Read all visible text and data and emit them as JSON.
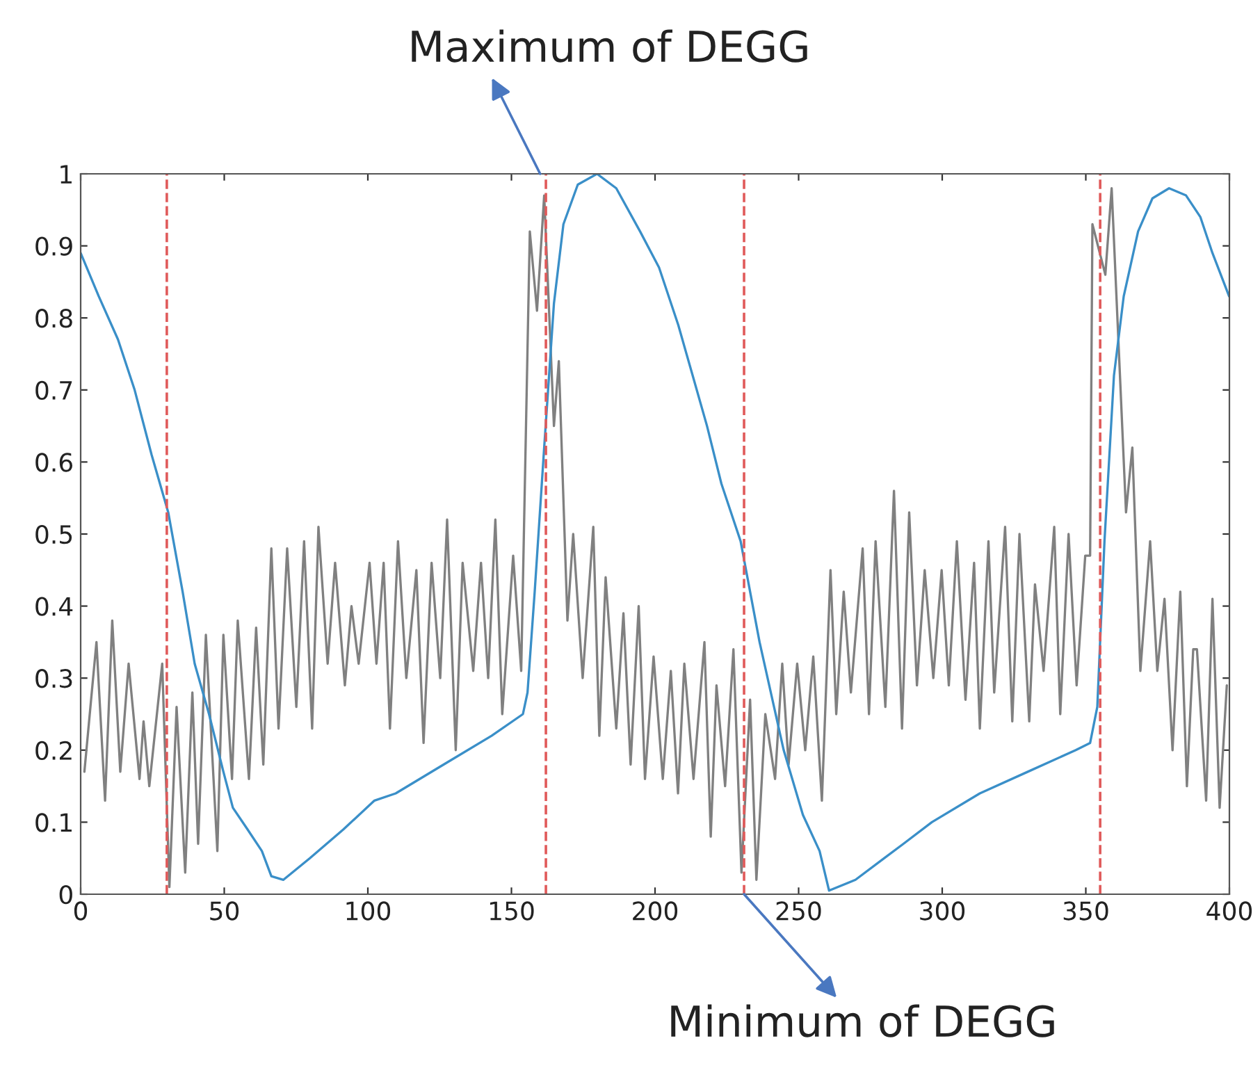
{
  "chart_data": {
    "type": "line",
    "xlim": [
      0,
      400
    ],
    "ylim": [
      0,
      1
    ],
    "xticks": [
      0,
      50,
      100,
      150,
      200,
      250,
      300,
      350,
      400
    ],
    "yticks": [
      0,
      0.1,
      0.2,
      0.3,
      0.4,
      0.5,
      0.6,
      0.7,
      0.8,
      0.9,
      1
    ],
    "grid": false,
    "line_style": "solid",
    "marker": "none",
    "series": [
      {
        "color": "#808080",
        "x": [
          1.3,
          5.5,
          8.5,
          11,
          13.8,
          16.7,
          20.5,
          21.9,
          23.9,
          28.4,
          30.9,
          33.4,
          36.4,
          38.9,
          40.9,
          43.6,
          47.6,
          49.7,
          52.7,
          54.7,
          58.6,
          61.1,
          63.6,
          66.4,
          68.9,
          71.9,
          75.1,
          77.8,
          80.6,
          82.8,
          86,
          88.6,
          92,
          94.3,
          96.8,
          100.6,
          103,
          105.5,
          107.7,
          110.5,
          113.4,
          116.9,
          119.4,
          122.2,
          125.2,
          127.6,
          130.6,
          133,
          136.7,
          139.4,
          141.9,
          144.4,
          146.8,
          150.6,
          153.4,
          156.4,
          158.9,
          161.4,
          164.8,
          166.5,
          169.5,
          171.5,
          174.8,
          178.5,
          180.6,
          182.8,
          186.5,
          189,
          191.5,
          194.3,
          196.5,
          199.5,
          202.7,
          205.5,
          208,
          210.2,
          213.4,
          217.2,
          219.4,
          221.4,
          224.4,
          227.3,
          230.1,
          233.1,
          235.3,
          238.4,
          241.8,
          244.3,
          246.5,
          249.5,
          252.3,
          255.1,
          258.1,
          261.1,
          263.1,
          265.7,
          268.2,
          272.3,
          274.5,
          276.8,
          280.2,
          283.2,
          286,
          288.5,
          291.2,
          293.9,
          296.9,
          299.8,
          302.3,
          305.1,
          308.1,
          311.1,
          313.1,
          316.1,
          318.1,
          321.9,
          324.4,
          326.9,
          330.3,
          332.3,
          335.3,
          339,
          341.1,
          344,
          346.8,
          349.8,
          351.5,
          352.3,
          356.8,
          359,
          364,
          366.2,
          369,
          372.4,
          374.9,
          377.4,
          380.2,
          382.9,
          385.2,
          387.4,
          388.7,
          391.9,
          394.1,
          396.6,
          399.1
        ],
        "values": [
          0.17,
          0.35,
          0.13,
          0.38,
          0.17,
          0.32,
          0.16,
          0.24,
          0.15,
          0.32,
          0.01,
          0.26,
          0.03,
          0.28,
          0.07,
          0.36,
          0.06,
          0.36,
          0.16,
          0.38,
          0.16,
          0.37,
          0.18,
          0.48,
          0.23,
          0.48,
          0.26,
          0.49,
          0.23,
          0.51,
          0.32,
          0.46,
          0.29,
          0.4,
          0.32,
          0.46,
          0.32,
          0.46,
          0.23,
          0.49,
          0.3,
          0.45,
          0.21,
          0.46,
          0.3,
          0.52,
          0.2,
          0.46,
          0.31,
          0.46,
          0.3,
          0.52,
          0.25,
          0.47,
          0.31,
          0.92,
          0.81,
          0.97,
          0.65,
          0.74,
          0.38,
          0.5,
          0.3,
          0.51,
          0.22,
          0.44,
          0.23,
          0.39,
          0.18,
          0.4,
          0.16,
          0.33,
          0.16,
          0.31,
          0.14,
          0.32,
          0.16,
          0.35,
          0.08,
          0.29,
          0.15,
          0.34,
          0.03,
          0.27,
          0.02,
          0.25,
          0.16,
          0.32,
          0.18,
          0.32,
          0.2,
          0.33,
          0.13,
          0.45,
          0.25,
          0.42,
          0.28,
          0.48,
          0.25,
          0.49,
          0.26,
          0.56,
          0.23,
          0.53,
          0.29,
          0.45,
          0.3,
          0.45,
          0.29,
          0.49,
          0.27,
          0.46,
          0.23,
          0.49,
          0.28,
          0.51,
          0.24,
          0.5,
          0.24,
          0.43,
          0.31,
          0.51,
          0.25,
          0.5,
          0.29,
          0.47,
          0.47,
          0.93,
          0.86,
          0.98,
          0.53,
          0.62,
          0.31,
          0.49,
          0.31,
          0.41,
          0.2,
          0.42,
          0.15,
          0.34,
          0.34,
          0.13,
          0.41,
          0.12,
          0.29
        ]
      },
      {
        "color": "#3a8fc8",
        "x": [
          0,
          6.3,
          13,
          18.8,
          24.7,
          30.5,
          35.5,
          39.7,
          44.7,
          49.7,
          53,
          58.1,
          63.1,
          66.4,
          70.6,
          79.8,
          91.5,
          102.3,
          109.7,
          126.4,
          143.1,
          154,
          155.6,
          158.1,
          161.4,
          164.8,
          168.1,
          173.1,
          179.8,
          186.5,
          194.8,
          201.4,
          208.1,
          213.1,
          218.1,
          223.1,
          229.8,
          236.4,
          244.8,
          251.5,
          257.3,
          260.6,
          269.8,
          286.5,
          296.4,
          313.1,
          329.8,
          346.5,
          351.5,
          354,
          356.5,
          359.8,
          363.2,
          368.2,
          373.2,
          379,
          384.9,
          389.9,
          394.1,
          399.9
        ],
        "values": [
          0.89,
          0.83,
          0.77,
          0.7,
          0.61,
          0.53,
          0.42,
          0.32,
          0.25,
          0.17,
          0.12,
          0.09,
          0.06,
          0.025,
          0.02,
          0.05,
          0.09,
          0.13,
          0.14,
          0.18,
          0.22,
          0.25,
          0.28,
          0.42,
          0.62,
          0.82,
          0.93,
          0.985,
          1,
          0.98,
          0.92,
          0.87,
          0.79,
          0.72,
          0.65,
          0.57,
          0.49,
          0.35,
          0.2,
          0.11,
          0.06,
          0.005,
          0.02,
          0.07,
          0.1,
          0.14,
          0.17,
          0.2,
          0.21,
          0.26,
          0.49,
          0.72,
          0.83,
          0.92,
          0.966,
          0.98,
          0.97,
          0.94,
          0.89,
          0.83
        ]
      }
    ],
    "ref_lines": [
      {
        "axis": "x",
        "value": 30,
        "color": "#e05a5a",
        "line_style": "dashed"
      },
      {
        "axis": "x",
        "value": 162,
        "color": "#e05a5a",
        "line_style": "dashed"
      },
      {
        "axis": "x",
        "value": 231,
        "color": "#e05a5a",
        "line_style": "dashed"
      },
      {
        "axis": "x",
        "value": 355,
        "color": "#e05a5a",
        "line_style": "dashed"
      }
    ],
    "annotations": [
      {
        "text": "Maximum of DEGG",
        "x": 160,
        "y": 1
      },
      {
        "text": "Minimum of DEGG",
        "x": 231,
        "y": 0
      }
    ]
  }
}
